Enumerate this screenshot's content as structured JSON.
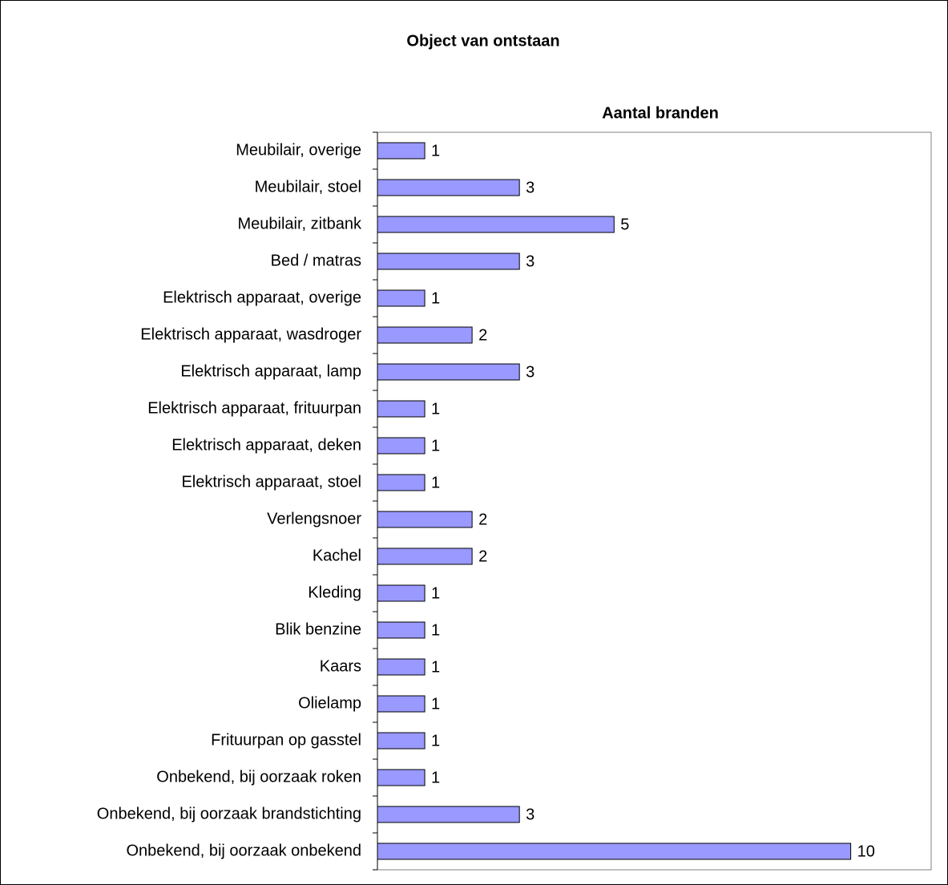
{
  "chart_data": {
    "type": "bar",
    "orientation": "horizontal",
    "title": "Object van ontstaan",
    "subtitle": "Aantal branden",
    "categories": [
      "Meubilair, overige",
      "Meubilair, stoel",
      "Meubilair, zitbank",
      "Bed / matras",
      "Elektrisch apparaat, overige",
      "Elektrisch apparaat, wasdroger",
      "Elektrisch apparaat, lamp",
      "Elektrisch apparaat, frituurpan",
      "Elektrisch apparaat, deken",
      "Elektrisch apparaat, stoel",
      "Verlengsnoer",
      "Kachel",
      "Kleding",
      "Blik benzine",
      "Kaars",
      "Olielamp",
      "Frituurpan op gasstel",
      "Onbekend, bij oorzaak roken",
      "Onbekend, bij oorzaak brandstichting",
      "Onbekend, bij oorzaak onbekend"
    ],
    "values": [
      1,
      3,
      5,
      3,
      1,
      2,
      3,
      1,
      1,
      1,
      2,
      2,
      1,
      1,
      1,
      1,
      1,
      1,
      3,
      10
    ],
    "color": "#9999ff",
    "xlim": [
      0,
      11.7
    ]
  }
}
